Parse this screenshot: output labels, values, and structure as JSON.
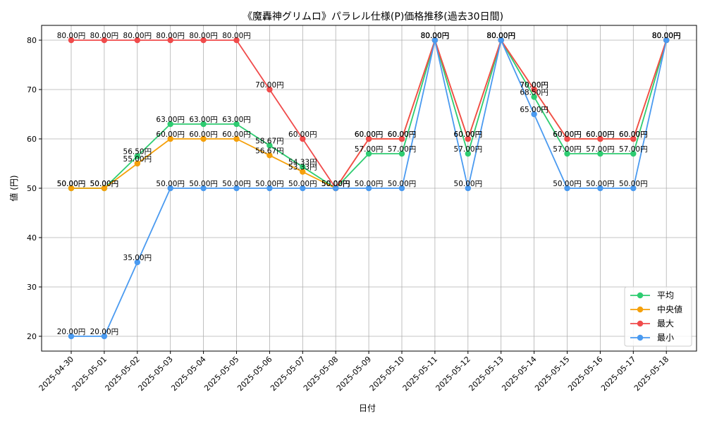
{
  "chart_data": {
    "type": "line",
    "title": "《魔轟神グリムロ》パラレル仕様(P)価格推移(過去30日間)",
    "xlabel": "日付",
    "ylabel": "値 (円)",
    "value_suffix": "円",
    "ylim": [
      17,
      83
    ],
    "yticks": [
      20,
      30,
      40,
      50,
      60,
      70,
      80
    ],
    "grid": true,
    "legend_position": "lower-right",
    "categories": [
      "2025-04-30",
      "2025-05-01",
      "2025-05-02",
      "2025-05-03",
      "2025-05-04",
      "2025-05-05",
      "2025-05-06",
      "2025-05-07",
      "2025-05-08",
      "2025-05-09",
      "2025-05-10",
      "2025-05-11",
      "2025-05-12",
      "2025-05-13",
      "2025-05-14",
      "2025-05-15",
      "2025-05-16",
      "2025-05-17",
      "2025-05-18"
    ],
    "series": [
      {
        "name": "平均",
        "color": "#2ecc71",
        "values": [
          50.0,
          50.0,
          56.5,
          63.0,
          63.0,
          63.0,
          58.67,
          54.33,
          50.0,
          57.0,
          57.0,
          80.0,
          57.0,
          80.0,
          68.5,
          57.0,
          57.0,
          57.0,
          80.0
        ]
      },
      {
        "name": "中央値",
        "color": "#f5a00a",
        "values": [
          50.0,
          50.0,
          55.0,
          60.0,
          60.0,
          60.0,
          56.67,
          53.33,
          50.0,
          60.0,
          60.0,
          80.0,
          60.0,
          80.0,
          70.0,
          60.0,
          60.0,
          60.0,
          80.0
        ]
      },
      {
        "name": "最大",
        "color": "#f04b4b",
        "values": [
          80.0,
          80.0,
          80.0,
          80.0,
          80.0,
          80.0,
          70.0,
          60.0,
          50.0,
          60.0,
          60.0,
          80.0,
          60.0,
          80.0,
          70.0,
          60.0,
          60.0,
          60.0,
          80.0
        ]
      },
      {
        "name": "最小",
        "color": "#4a9af0",
        "values": [
          20.0,
          20.0,
          35.0,
          50.0,
          50.0,
          50.0,
          50.0,
          50.0,
          50.0,
          50.0,
          50.0,
          80.0,
          50.0,
          80.0,
          65.0,
          50.0,
          50.0,
          50.0,
          80.0
        ]
      }
    ]
  }
}
